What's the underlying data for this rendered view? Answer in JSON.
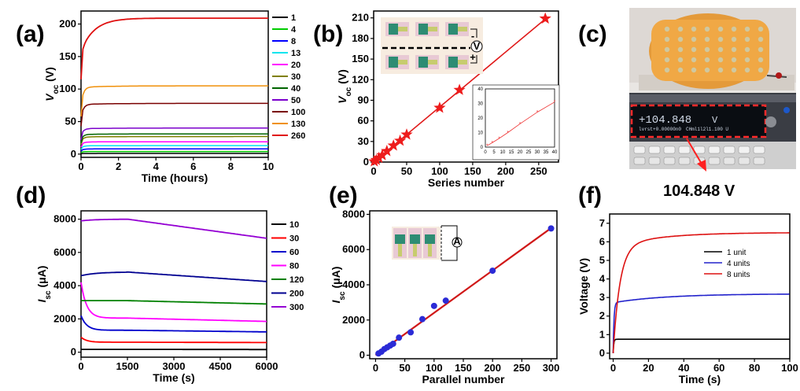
{
  "panels": {
    "a": {
      "label": "(a)"
    },
    "b": {
      "label": "(b)"
    },
    "c": {
      "label": "(c)",
      "meter_reading": "+104.848",
      "meter_unit": "V",
      "meter_sub": "lvrst+0.00000n0",
      "meter_sub2": "CHml1l2l1.100 U",
      "caption": "104.848 V"
    },
    "d": {
      "label": "(d)"
    },
    "e": {
      "label": "(e)"
    },
    "f": {
      "label": "(f)"
    }
  },
  "chart_data": [
    {
      "id": "a",
      "type": "line",
      "xlabel": "Time (hours)",
      "ylabel": "V",
      "ylabel_sub": "oc",
      "ylabel_unit": " (V)",
      "xlim": [
        0,
        10
      ],
      "ylim": [
        -5,
        220
      ],
      "xticks": [
        "0",
        "2",
        "4",
        "6",
        "8",
        "10"
      ],
      "yticks": [
        "0",
        "50",
        "100",
        "150",
        "200"
      ],
      "legend": "right",
      "series": [
        {
          "name": "1",
          "color": "#000000",
          "level": 1
        },
        {
          "name": "4",
          "color": "#00cc00",
          "level": 4
        },
        {
          "name": "8",
          "color": "#0000ff",
          "level": 8
        },
        {
          "name": "13",
          "color": "#00e5ee",
          "level": 13
        },
        {
          "name": "20",
          "color": "#ff00ff",
          "level": 19
        },
        {
          "name": "30",
          "color": "#808000",
          "level": 27
        },
        {
          "name": "40",
          "color": "#006400",
          "level": 31
        },
        {
          "name": "50",
          "color": "#7b00cc",
          "level": 40
        },
        {
          "name": "100",
          "color": "#7a0000",
          "level": 78
        },
        {
          "name": "130",
          "color": "#f0900a",
          "level": 105
        },
        {
          "name": "260",
          "color": "#e01010",
          "level": 209
        }
      ]
    },
    {
      "id": "b",
      "type": "scatter",
      "xlabel": "Series number",
      "ylabel": "V",
      "ylabel_sub": "oc",
      "ylabel_unit": " (V)",
      "xlim": [
        0,
        280
      ],
      "ylim": [
        0,
        220
      ],
      "xticks": [
        "0",
        "50",
        "100",
        "150",
        "200",
        "250"
      ],
      "yticks": [
        "0",
        "30",
        "60",
        "90",
        "120",
        "150",
        "180",
        "210"
      ],
      "x": [
        1,
        4,
        8,
        13,
        20,
        30,
        40,
        50,
        100,
        130,
        260
      ],
      "y": [
        1,
        3,
        6,
        10,
        16,
        24,
        31,
        40,
        79,
        105,
        209
      ],
      "inset": {
        "xlim": [
          0,
          40
        ],
        "ylim": [
          0,
          40
        ],
        "xticks": [
          "0",
          "5",
          "10",
          "15",
          "20",
          "25",
          "30",
          "35",
          "40"
        ],
        "yticks": [
          "0",
          "10",
          "20",
          "30",
          "40"
        ],
        "x": [
          1,
          4,
          8,
          13,
          20,
          30,
          40
        ],
        "y": [
          1,
          3,
          6,
          10,
          16,
          24,
          31
        ]
      },
      "schematic_labels": [
        "-",
        "+",
        "V"
      ]
    },
    {
      "id": "d",
      "type": "line",
      "xlabel": "Time (s)",
      "ylabel": "I",
      "ylabel_sub": "sc",
      "ylabel_unit": " (μA)",
      "xlim": [
        0,
        6000
      ],
      "ylim": [
        -300,
        8500
      ],
      "xticks": [
        "0",
        "1500",
        "3000",
        "4500",
        "6000"
      ],
      "yticks": [
        "0",
        "2000",
        "4000",
        "6000",
        "8000"
      ],
      "legend": "right",
      "series": [
        {
          "name": "10",
          "color": "#000000",
          "start": 170,
          "peak": 170,
          "end": 160
        },
        {
          "name": "30",
          "color": "#ff0000",
          "start": 900,
          "peak": 600,
          "end": 580
        },
        {
          "name": "60",
          "color": "#0000cc",
          "start": 2200,
          "peak": 1320,
          "end": 1220
        },
        {
          "name": "80",
          "color": "#ff00ff",
          "start": 4200,
          "peak": 2050,
          "end": 1850
        },
        {
          "name": "120",
          "color": "#008000",
          "start": 3100,
          "peak": 3100,
          "end": 2900
        },
        {
          "name": "200",
          "color": "#000090",
          "start": 4600,
          "peak": 4820,
          "end": 4250
        },
        {
          "name": "300",
          "color": "#9400d3",
          "start": 7900,
          "peak": 8000,
          "end": 6850
        }
      ]
    },
    {
      "id": "e",
      "type": "scatter",
      "xlabel": "Parallel number",
      "ylabel": "I",
      "ylabel_sub": "sc",
      "ylabel_unit": " (μA)",
      "xlim": [
        -10,
        310
      ],
      "ylim": [
        -200,
        8200
      ],
      "xticks": [
        "0",
        "50",
        "100",
        "150",
        "200",
        "250",
        "300"
      ],
      "yticks": [
        "0",
        "2000",
        "4000",
        "6000",
        "8000"
      ],
      "x": [
        5,
        10,
        15,
        20,
        25,
        30,
        40,
        60,
        80,
        100,
        120,
        200,
        300
      ],
      "y": [
        100,
        200,
        350,
        450,
        550,
        650,
        1000,
        1300,
        2050,
        2800,
        3100,
        4800,
        7200
      ],
      "fit": {
        "x": [
          0,
          300
        ],
        "y": [
          0,
          7220
        ]
      }
    },
    {
      "id": "f",
      "type": "line",
      "xlabel": "Time (s)",
      "ylabel": "Voltage (V)",
      "xlim": [
        -2,
        100
      ],
      "ylim": [
        -0.3,
        7.5
      ],
      "xticks": [
        "0",
        "20",
        "40",
        "60",
        "80",
        "100"
      ],
      "yticks": [
        "0",
        "1",
        "2",
        "3",
        "4",
        "5",
        "6",
        "7"
      ],
      "legend": "right",
      "series": [
        {
          "name": "1 unit",
          "color": "#000000",
          "final": 0.75
        },
        {
          "name": "4 units",
          "color": "#2222cc",
          "final": 3.2
        },
        {
          "name": "8 units",
          "color": "#dd1111",
          "final": 6.5
        }
      ]
    }
  ]
}
